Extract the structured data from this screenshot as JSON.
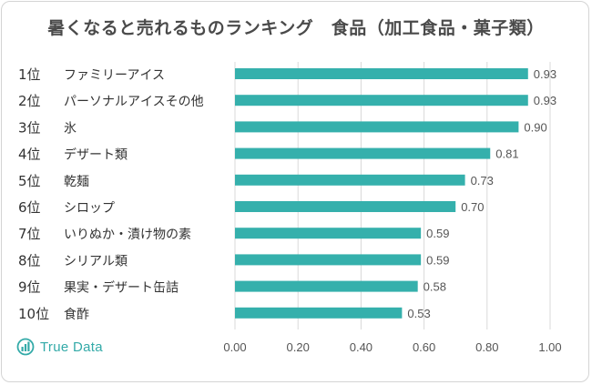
{
  "chart_data": {
    "type": "bar",
    "orientation": "horizontal",
    "title": "暑くなると売れるものランキング　食品（加工食品・菓子類）",
    "categories": [
      "1位　ファミリーアイス",
      "2位　パーソナルアイスその他",
      "3位　氷",
      "4位　デザート類",
      "5位　乾麺",
      "6位　シロップ",
      "7位　いりぬか・漬け物の素",
      "8位　シリアル類",
      "9位　果実・デザート缶詰",
      "10位　食酢"
    ],
    "ranks": [
      "1位",
      "2位",
      "3位",
      "4位",
      "5位",
      "6位",
      "7位",
      "8位",
      "9位",
      "10位"
    ],
    "names": [
      "ファミリーアイス",
      "パーソナルアイスその他",
      "氷",
      "デザート類",
      "乾麺",
      "シロップ",
      "いりぬか・漬け物の素",
      "シリアル類",
      "果実・デザート缶詰",
      "食酢"
    ],
    "values": [
      0.93,
      0.93,
      0.9,
      0.81,
      0.73,
      0.7,
      0.59,
      0.59,
      0.58,
      0.53
    ],
    "value_labels": [
      "0.93",
      "0.93",
      "0.90",
      "0.81",
      "0.73",
      "0.70",
      "0.59",
      "0.59",
      "0.58",
      "0.53"
    ],
    "xlim": [
      0,
      1.0
    ],
    "xticks": [
      "0.00",
      "0.20",
      "0.40",
      "0.60",
      "0.80",
      "1.00"
    ],
    "xtick_values": [
      0,
      0.2,
      0.4,
      0.6,
      0.8,
      1.0
    ],
    "grid": true,
    "bar_color": "#35b0ac",
    "grid_color": "#d9d9d9"
  },
  "logo": {
    "text": "True Data",
    "color": "#33aaa8"
  }
}
